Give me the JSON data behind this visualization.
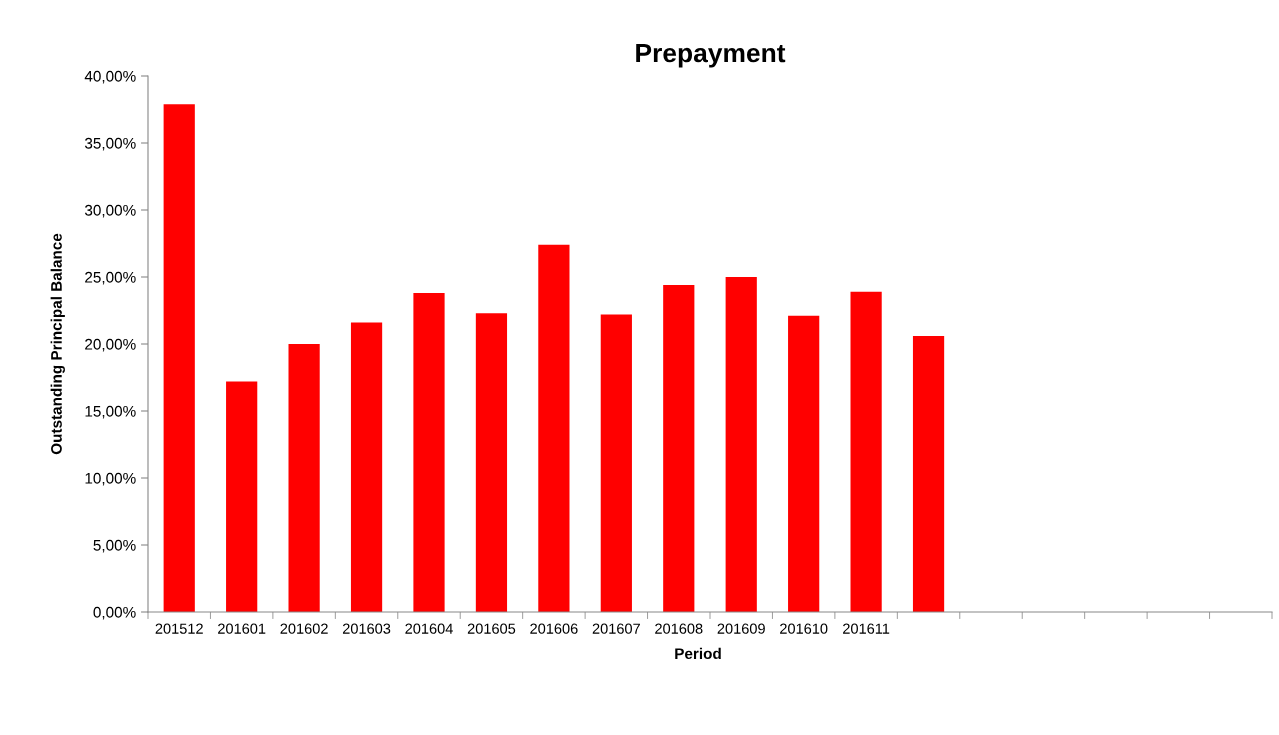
{
  "chart_data": {
    "type": "bar",
    "title": "Prepayment",
    "xlabel": "Period",
    "ylabel": "Outstanding Principal Balance",
    "categories": [
      "201512",
      "201601",
      "201602",
      "201603",
      "201604",
      "201605",
      "201606",
      "201607",
      "201608",
      "201609",
      "201610",
      "201611",
      null,
      null,
      null,
      null,
      null,
      null
    ],
    "values": [
      37.9,
      17.2,
      20.0,
      21.6,
      23.8,
      22.3,
      27.4,
      22.2,
      24.4,
      25.0,
      22.1,
      23.9,
      20.6,
      null,
      null,
      null,
      null,
      null
    ],
    "color": "#ff0000",
    "ylim": [
      0,
      40
    ],
    "yticks": [
      {
        "value": 0,
        "label": "0,00%"
      },
      {
        "value": 5,
        "label": "5,00%"
      },
      {
        "value": 10,
        "label": "10,00%"
      },
      {
        "value": 15,
        "label": "15,00%"
      },
      {
        "value": 20,
        "label": "20,00%"
      },
      {
        "value": 25,
        "label": "25,00%"
      },
      {
        "value": 30,
        "label": "30,00%"
      },
      {
        "value": 35,
        "label": "35,00%"
      },
      {
        "value": 40,
        "label": "40,00%"
      }
    ],
    "grid": false,
    "legend": false
  }
}
